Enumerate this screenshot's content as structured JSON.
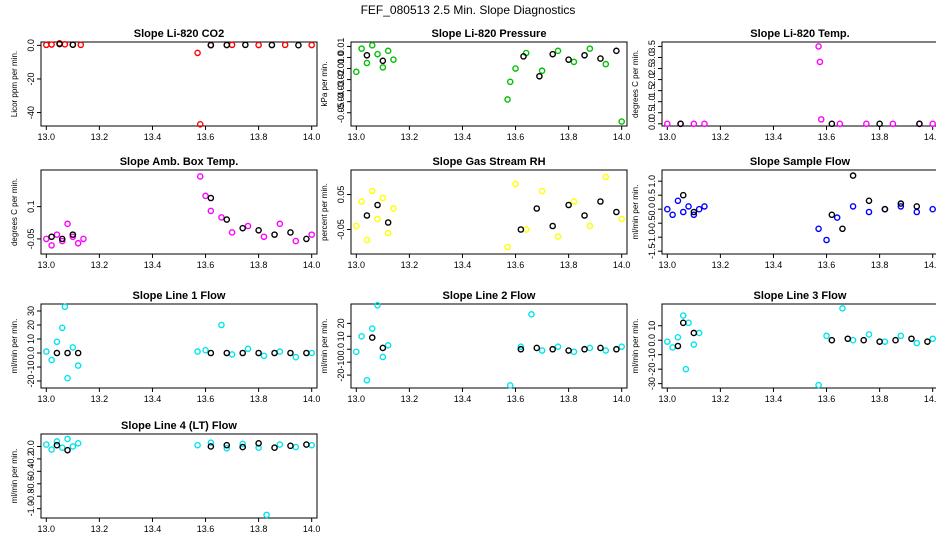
{
  "main_title": "FEF_080513  2.5 Min. Slope Diagnostics",
  "chart_data": [
    {
      "type": "scatter",
      "title": "Slope Li-820 CO2",
      "ylabel": "Licor ppm per min.",
      "xlim": [
        12.98,
        14.02
      ],
      "ylim": [
        -48,
        2
      ],
      "xticks": [
        13.0,
        13.2,
        13.4,
        13.6,
        13.8,
        14.0
      ],
      "yticks": [
        0,
        -20,
        -40
      ],
      "colors": {
        "a": "#ff0000",
        "b": "#000000"
      },
      "series": [
        {
          "name": "a",
          "x": [
            13.0,
            13.02,
            13.05,
            13.07,
            13.1,
            13.13,
            13.57,
            13.58,
            13.62,
            13.7,
            13.8,
            13.9,
            14.0
          ],
          "y": [
            0.3,
            0.5,
            1.2,
            0.6,
            0.4,
            0.3,
            -4.5,
            -47.0,
            0.2,
            0.3,
            0.2,
            0.3,
            0.2
          ]
        },
        {
          "name": "b",
          "x": [
            13.05,
            13.1,
            13.62,
            13.68,
            13.75,
            13.85,
            13.95
          ],
          "y": [
            0.8,
            0.4,
            0.1,
            0.2,
            0.3,
            0.2,
            0.1
          ]
        }
      ]
    },
    {
      "type": "scatter",
      "title": "Slope Li-820 Pressure",
      "ylabel": "kPa per min.",
      "xlim": [
        12.98,
        14.02
      ],
      "ylim": [
        -0.062,
        0.014
      ],
      "xticks": [
        13.0,
        13.2,
        13.4,
        13.6,
        13.8,
        14.0
      ],
      "yticks": [
        0.01,
        0.0,
        -0.01,
        -0.02,
        -0.03,
        -0.04,
        -0.05
      ],
      "colors": {
        "a": "#00c000",
        "b": "#000000"
      },
      "series": [
        {
          "name": "a",
          "x": [
            13.0,
            13.02,
            13.04,
            13.06,
            13.08,
            13.1,
            13.12,
            13.14,
            13.57,
            13.58,
            13.6,
            13.64,
            13.7,
            13.76,
            13.82,
            13.88,
            13.94,
            14.0
          ],
          "y": [
            -0.013,
            0.008,
            -0.005,
            0.011,
            0.003,
            -0.009,
            0.006,
            -0.002,
            -0.038,
            -0.022,
            -0.01,
            0.004,
            -0.012,
            0.006,
            -0.004,
            0.008,
            -0.006,
            -0.058
          ]
        },
        {
          "name": "b",
          "x": [
            13.04,
            13.1,
            13.63,
            13.69,
            13.74,
            13.8,
            13.86,
            13.92,
            13.98
          ],
          "y": [
            0.002,
            -0.003,
            0.001,
            -0.017,
            0.003,
            -0.002,
            0.002,
            -0.001,
            0.006
          ]
        }
      ]
    },
    {
      "type": "scatter",
      "title": "Slope Li-820 Temp.",
      "ylabel": "degrees C per min.",
      "xlim": [
        12.98,
        14.02
      ],
      "ylim": [
        -0.1,
        3.7
      ],
      "xticks": [
        13.0,
        13.2,
        13.4,
        13.6,
        13.8,
        14.0
      ],
      "yticks": [
        0.0,
        0.5,
        1.0,
        1.5,
        2.0,
        2.5,
        3.0,
        3.5
      ],
      "colors": {
        "a": "#ff00ff",
        "b": "#000000"
      },
      "series": [
        {
          "name": "a",
          "x": [
            13.0,
            13.05,
            13.1,
            13.14,
            13.57,
            13.575,
            13.58,
            13.65,
            13.75,
            13.85,
            13.95,
            14.0
          ],
          "y": [
            0.0,
            0.0,
            0.0,
            0.0,
            3.5,
            2.8,
            0.2,
            0.0,
            0.0,
            0.0,
            0.0,
            0.0
          ]
        },
        {
          "name": "b",
          "x": [
            13.05,
            13.62,
            13.8,
            13.95
          ],
          "y": [
            0.0,
            0.0,
            0.0,
            0.0
          ]
        }
      ]
    },
    {
      "type": "scatter",
      "title": "Slope Amb. Box Temp.",
      "ylabel": "degrees C per min.",
      "xlim": [
        12.98,
        14.02
      ],
      "ylim": [
        -0.12,
        0.27
      ],
      "xticks": [
        13.0,
        13.2,
        13.4,
        13.6,
        13.8,
        14.0
      ],
      "yticks": [
        0.1,
        -0.05
      ],
      "colors": {
        "a": "#ff00ff",
        "b": "#000000"
      },
      "series": [
        {
          "name": "a",
          "x": [
            13.0,
            13.02,
            13.04,
            13.06,
            13.08,
            13.1,
            13.12,
            13.14,
            13.58,
            13.6,
            13.62,
            13.66,
            13.7,
            13.76,
            13.82,
            13.88,
            13.94,
            14.0
          ],
          "y": [
            -0.05,
            -0.08,
            -0.03,
            -0.06,
            0.02,
            -0.04,
            -0.07,
            -0.05,
            0.24,
            0.15,
            0.08,
            0.05,
            -0.02,
            0.01,
            -0.04,
            0.02,
            -0.06,
            -0.03
          ]
        },
        {
          "name": "b",
          "x": [
            13.02,
            13.06,
            13.1,
            13.62,
            13.68,
            13.74,
            13.8,
            13.86,
            13.92,
            13.98
          ],
          "y": [
            -0.04,
            -0.05,
            -0.03,
            0.14,
            0.04,
            0.0,
            -0.01,
            -0.03,
            -0.02,
            -0.05
          ]
        }
      ]
    },
    {
      "type": "scatter",
      "title": "Slope Gas Stream RH",
      "ylabel": "percent per min.",
      "xlim": [
        12.98,
        14.02
      ],
      "ylim": [
        -0.12,
        0.12
      ],
      "xticks": [
        13.0,
        13.2,
        13.4,
        13.6,
        13.8,
        14.0
      ],
      "yticks": [
        0.05,
        -0.05
      ],
      "colors": {
        "a": "#ffff00",
        "b": "#000000"
      },
      "series": [
        {
          "name": "a",
          "x": [
            13.0,
            13.02,
            13.04,
            13.06,
            13.08,
            13.1,
            13.12,
            13.14,
            13.57,
            13.6,
            13.64,
            13.7,
            13.76,
            13.82,
            13.88,
            13.94,
            14.0
          ],
          "y": [
            -0.04,
            0.03,
            -0.08,
            0.06,
            -0.02,
            0.04,
            -0.06,
            0.01,
            -0.1,
            0.08,
            -0.05,
            0.06,
            -0.07,
            0.03,
            -0.04,
            0.1,
            -0.02
          ]
        },
        {
          "name": "b",
          "x": [
            13.04,
            13.08,
            13.12,
            13.62,
            13.68,
            13.74,
            13.8,
            13.86,
            13.92,
            13.98
          ],
          "y": [
            -0.01,
            0.02,
            -0.03,
            -0.05,
            0.01,
            -0.04,
            0.02,
            -0.01,
            0.03,
            0.0
          ]
        }
      ]
    },
    {
      "type": "scatter",
      "title": "Slope Sample Flow",
      "ylabel": "ml/min per min.",
      "xlim": [
        12.98,
        14.02
      ],
      "ylim": [
        -1.6,
        1.4
      ],
      "xticks": [
        13.0,
        13.2,
        13.4,
        13.6,
        13.8,
        14.0
      ],
      "yticks": [
        1.0,
        0.5,
        0.0,
        -0.5,
        -1.0,
        -1.5
      ],
      "colors": {
        "a": "#0000ff",
        "b": "#000000"
      },
      "series": [
        {
          "name": "a",
          "x": [
            13.0,
            13.02,
            13.04,
            13.06,
            13.08,
            13.1,
            13.12,
            13.14,
            13.57,
            13.6,
            13.64,
            13.7,
            13.76,
            13.82,
            13.88,
            13.94,
            14.0
          ],
          "y": [
            0.0,
            -0.2,
            0.3,
            -0.1,
            0.1,
            -0.2,
            0.0,
            0.1,
            -0.7,
            -1.1,
            -0.3,
            0.1,
            -0.1,
            0.0,
            0.1,
            -0.1,
            0.0
          ]
        },
        {
          "name": "b",
          "x": [
            13.06,
            13.1,
            13.62,
            13.66,
            13.7,
            13.76,
            13.82,
            13.88,
            13.94
          ],
          "y": [
            0.5,
            -0.1,
            -0.2,
            -0.7,
            1.2,
            0.3,
            0.0,
            0.2,
            0.1
          ]
        }
      ]
    },
    {
      "type": "scatter",
      "title": "Slope Line 1 Flow",
      "ylabel": "ml/min per min.",
      "xlim": [
        12.98,
        14.02
      ],
      "ylim": [
        -25,
        35
      ],
      "xticks": [
        13.0,
        13.2,
        13.4,
        13.6,
        13.8,
        14.0
      ],
      "yticks": [
        30,
        20,
        10,
        0,
        -10,
        -20
      ],
      "colors": {
        "a": "#00e5ee",
        "b": "#000000"
      },
      "series": [
        {
          "name": "a",
          "x": [
            13.0,
            13.02,
            13.04,
            13.06,
            13.07,
            13.08,
            13.1,
            13.12,
            13.57,
            13.6,
            13.66,
            13.7,
            13.76,
            13.82,
            13.88,
            13.94,
            14.0
          ],
          "y": [
            1,
            -5,
            8,
            18,
            33,
            -18,
            4,
            -9,
            1,
            2,
            20,
            -1,
            3,
            -2,
            1,
            -3,
            0
          ]
        },
        {
          "name": "b",
          "x": [
            13.04,
            13.08,
            13.12,
            13.62,
            13.68,
            13.74,
            13.8,
            13.86,
            13.92,
            13.98
          ],
          "y": [
            0,
            0,
            0,
            0,
            0,
            0,
            0,
            0,
            0,
            0
          ]
        }
      ]
    },
    {
      "type": "scatter",
      "title": "Slope Line 2 Flow",
      "ylabel": "ml/min per min.",
      "xlim": [
        12.98,
        14.02
      ],
      "ylim": [
        -30,
        35
      ],
      "xticks": [
        13.0,
        13.2,
        13.4,
        13.6,
        13.8,
        14.0
      ],
      "yticks": [
        20,
        10,
        0,
        -10,
        -20
      ],
      "colors": {
        "a": "#00e5ee",
        "b": "#000000"
      },
      "series": [
        {
          "name": "a",
          "x": [
            13.0,
            13.02,
            13.04,
            13.06,
            13.08,
            13.1,
            13.12,
            13.58,
            13.62,
            13.66,
            13.7,
            13.76,
            13.82,
            13.88,
            13.94,
            14.0
          ],
          "y": [
            -2,
            10,
            -24,
            16,
            34,
            -6,
            3,
            -28,
            2,
            27,
            -1,
            2,
            -2,
            1,
            -1,
            2
          ]
        },
        {
          "name": "b",
          "x": [
            13.06,
            13.1,
            13.62,
            13.68,
            13.74,
            13.8,
            13.86,
            13.92,
            13.98
          ],
          "y": [
            9,
            1,
            0,
            1,
            0,
            -1,
            0,
            1,
            0
          ]
        }
      ]
    },
    {
      "type": "scatter",
      "title": "Slope Line 3 Flow",
      "ylabel": "ml/min per min.",
      "xlim": [
        12.98,
        14.02
      ],
      "ylim": [
        -33,
        25
      ],
      "xticks": [
        13.0,
        13.2,
        13.4,
        13.6,
        13.8,
        14.0
      ],
      "yticks": [
        10,
        0,
        -10,
        -20,
        -30
      ],
      "colors": {
        "a": "#00e5ee",
        "b": "#000000"
      },
      "series": [
        {
          "name": "a",
          "x": [
            13.0,
            13.02,
            13.04,
            13.06,
            13.07,
            13.08,
            13.1,
            13.12,
            13.57,
            13.6,
            13.66,
            13.7,
            13.76,
            13.82,
            13.88,
            13.94,
            14.0
          ],
          "y": [
            -1,
            -5,
            2,
            17,
            -20,
            12,
            -3,
            5,
            -31,
            3,
            22,
            0,
            4,
            -1,
            3,
            -2,
            1
          ]
        },
        {
          "name": "b",
          "x": [
            13.04,
            13.06,
            13.1,
            13.62,
            13.68,
            13.74,
            13.8,
            13.86,
            13.92,
            13.98
          ],
          "y": [
            -4,
            12,
            5,
            0,
            1,
            0,
            -1,
            0,
            1,
            -1
          ]
        }
      ]
    },
    {
      "type": "scatter",
      "title": "Slope Line 4 (LT) Flow",
      "ylabel": "ml/min per min.",
      "xlim": [
        12.98,
        14.02
      ],
      "ylim": [
        -1.15,
        0.2
      ],
      "xticks": [
        13.0,
        13.2,
        13.4,
        13.6,
        13.8,
        14.0
      ],
      "yticks": [
        0.0,
        -0.2,
        -0.4,
        -0.6,
        -0.8,
        -1.0
      ],
      "colors": {
        "a": "#00e5ee",
        "b": "#000000"
      },
      "series": [
        {
          "name": "a",
          "x": [
            13.0,
            13.02,
            13.04,
            13.06,
            13.08,
            13.1,
            13.12,
            13.57,
            13.62,
            13.68,
            13.74,
            13.8,
            13.83,
            13.88,
            13.94,
            14.0
          ],
          "y": [
            0.03,
            -0.05,
            0.08,
            -0.02,
            0.12,
            0.0,
            0.05,
            0.02,
            0.06,
            -0.03,
            0.04,
            -0.02,
            -1.1,
            0.03,
            -0.01,
            0.02
          ]
        },
        {
          "name": "b",
          "x": [
            13.04,
            13.08,
            13.62,
            13.68,
            13.74,
            13.8,
            13.86,
            13.92,
            13.98
          ],
          "y": [
            0.02,
            -0.06,
            0.0,
            0.02,
            -0.01,
            0.05,
            -0.02,
            0.01,
            0.03
          ]
        }
      ]
    }
  ]
}
